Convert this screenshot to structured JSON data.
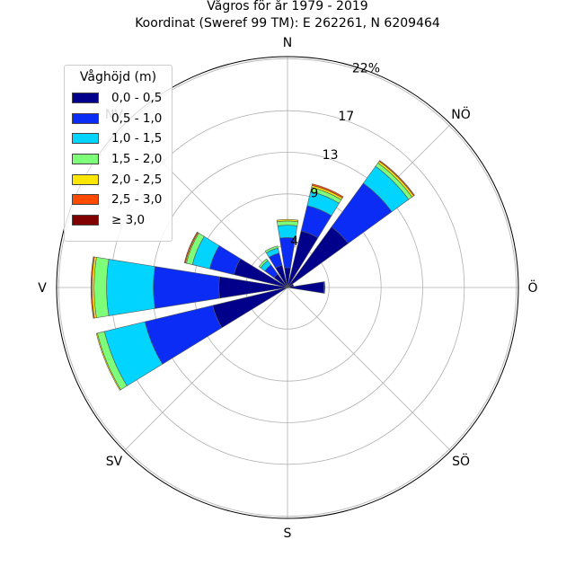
{
  "title": {
    "line1": "Vågros för år 1979 - 2019",
    "line2": "Koordinat (Sweref 99 TM): E 262261, N 6209464"
  },
  "legend": {
    "title": "Våghöjd (m)",
    "items": [
      {
        "label": "0,0 - 0,5",
        "color": "#00008b"
      },
      {
        "label": "0,5 - 1,0",
        "color": "#0a2cf5"
      },
      {
        "label": "1,0 - 1,5",
        "color": "#00d4ff"
      },
      {
        "label": "1,5 - 2,0",
        "color": "#7dff7a"
      },
      {
        "label": "2,0 - 2,5",
        "color": "#ffe600"
      },
      {
        "label": "2,5 - 3,0",
        "color": "#ff4a00"
      },
      {
        "label": "≥ 3,0",
        "color": "#800000"
      }
    ]
  },
  "chart_data": {
    "type": "windrose",
    "directions": [
      "N",
      "NÖ",
      "Ö",
      "SÖ",
      "S",
      "SV",
      "V",
      "NV"
    ],
    "radial_ticks": [
      "4",
      "9",
      "13",
      "17",
      "22%"
    ],
    "rmax": 22.2,
    "series_order": [
      "0,0 - 0,5",
      "0,5 - 1,0",
      "1,0 - 1,5",
      "1,5 - 2,0",
      "2,0 - 2,5",
      "2,5 - 3,0",
      "≥ 3,0"
    ],
    "sectors": [
      {
        "direction_deg": 0,
        "values": [
          1.9,
          2.9,
          1.2,
          0.4,
          0.15,
          0.0,
          0.0
        ]
      },
      {
        "direction_deg": 22.5,
        "values": [
          5.6,
          2.5,
          1.4,
          0.4,
          0.2,
          0.15,
          0.0
        ]
      },
      {
        "direction_deg": 45,
        "values": [
          7.2,
          5.2,
          2.0,
          0.4,
          0.2,
          0.1,
          0.0
        ]
      },
      {
        "direction_deg": 67.5,
        "values": [
          0.6,
          0.0,
          0.0,
          0.0,
          0.0,
          0.0,
          0.0
        ]
      },
      {
        "direction_deg": 90,
        "values": [
          3.5,
          0.1,
          0.0,
          0.0,
          0.0,
          0.0,
          0.0
        ]
      },
      {
        "direction_deg": 247.5,
        "values": [
          7.4,
          6.7,
          4.0,
          0.7,
          0.1,
          0.0,
          0.0
        ]
      },
      {
        "direction_deg": 270,
        "values": [
          6.6,
          6.3,
          4.5,
          1.2,
          0.2,
          0.1,
          0.0
        ]
      },
      {
        "direction_deg": 292.5,
        "values": [
          5.3,
          2.4,
          1.7,
          0.6,
          0.1,
          0.1,
          0.0
        ]
      },
      {
        "direction_deg": 315,
        "values": [
          1.6,
          1.1,
          0.5,
          0.2,
          0.0,
          0.0,
          0.0
        ]
      },
      {
        "direction_deg": 337.5,
        "values": [
          2.2,
          1.2,
          0.5,
          0.2,
          0.0,
          0.0,
          0.0
        ]
      }
    ],
    "grid": true,
    "legend_position": "top-left"
  }
}
